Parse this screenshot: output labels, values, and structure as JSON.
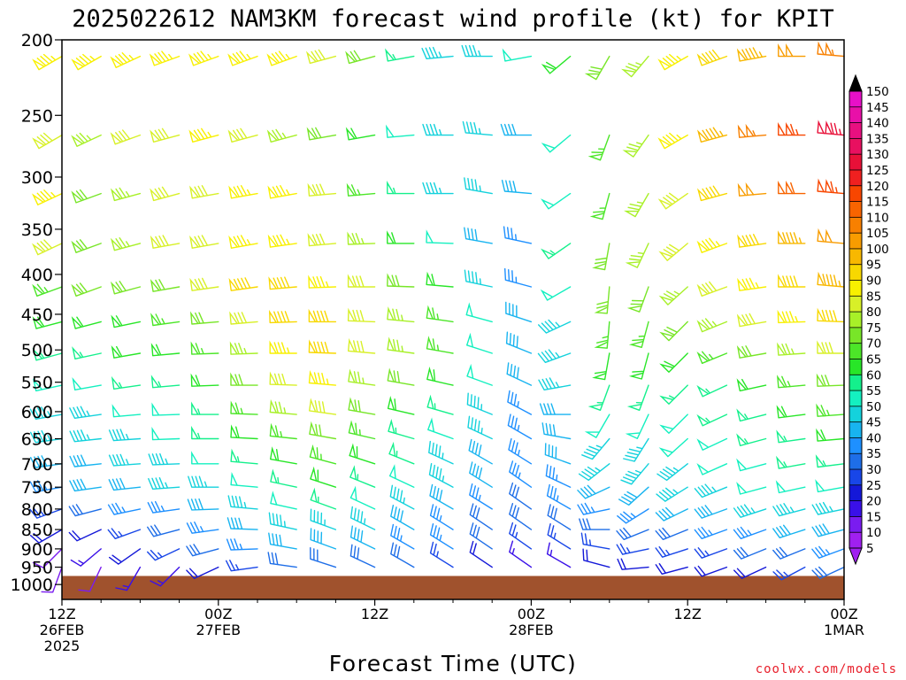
{
  "chart_data": {
    "type": "wind-barb-time-height",
    "title": "2025022612 NAM3KM forecast wind profile (kt) for KPIT",
    "xlabel": "Forecast Time (UTC)",
    "ylabel": "",
    "credit": "coolwx.com/models",
    "x_axis": {
      "range_hours": [
        0,
        60
      ],
      "tick_hours": [
        0,
        12,
        24,
        36,
        48,
        60
      ],
      "tick_labels": [
        [
          "12Z",
          "26FEB",
          "2025"
        ],
        [
          "00Z",
          "27FEB"
        ],
        [
          "12Z"
        ],
        [
          "00Z",
          "28FEB"
        ],
        [
          "12Z"
        ],
        [
          "00Z",
          "1MAR"
        ]
      ]
    },
    "y_axis": {
      "scale": "log",
      "range_hpa": [
        1000,
        200
      ],
      "ticks": [
        200,
        250,
        300,
        350,
        400,
        450,
        500,
        550,
        600,
        650,
        700,
        750,
        800,
        850,
        900,
        950,
        1000
      ]
    },
    "ground_pressure_hpa": 975,
    "ground_color": "#a0522d",
    "colorbar": {
      "levels": [
        5,
        10,
        15,
        20,
        25,
        30,
        35,
        40,
        45,
        50,
        55,
        60,
        65,
        70,
        75,
        80,
        85,
        90,
        95,
        100,
        105,
        110,
        115,
        120,
        125,
        130,
        135,
        140,
        145,
        150
      ],
      "colors": [
        "#a020f0",
        "#7a1cf0",
        "#3a10e8",
        "#1418d8",
        "#1846e8",
        "#1e6ee8",
        "#1e90ff",
        "#18b4f0",
        "#14d2dc",
        "#14f0c0",
        "#14f08c",
        "#28e628",
        "#4ce628",
        "#78e628",
        "#a8f028",
        "#d8f028",
        "#f8f000",
        "#f8d800",
        "#f8b800",
        "#f89c00",
        "#f88000",
        "#f86400",
        "#f84600",
        "#f02020",
        "#e81038",
        "#e81060",
        "#e81080",
        "#e810a8",
        "#e810c8",
        "#e810e8"
      ],
      "below_color": "#a020f0",
      "above_color": "#000000"
    },
    "barbs": {
      "times_hours": [
        0,
        3,
        6,
        9,
        12,
        15,
        18,
        21,
        24,
        27,
        30,
        33,
        36,
        39,
        42,
        45,
        48,
        51,
        54,
        57,
        60
      ],
      "levels_hpa": [
        210,
        265,
        315,
        365,
        415,
        460,
        505,
        555,
        605,
        650,
        700,
        750,
        800,
        850,
        900,
        950
      ],
      "wind_from_dir_deg": [
        [
          240,
          240,
          245,
          250,
          250,
          250,
          250,
          255,
          255,
          260,
          265,
          270,
          260,
          230,
          210,
          220,
          240,
          250,
          260,
          270,
          275
        ],
        [
          240,
          245,
          250,
          255,
          255,
          255,
          255,
          260,
          260,
          265,
          270,
          275,
          270,
          230,
          200,
          215,
          240,
          255,
          265,
          270,
          275
        ],
        [
          245,
          250,
          255,
          255,
          260,
          260,
          260,
          265,
          265,
          270,
          270,
          280,
          275,
          235,
          195,
          210,
          235,
          255,
          265,
          270,
          275
        ],
        [
          245,
          250,
          255,
          260,
          260,
          260,
          262,
          265,
          268,
          270,
          272,
          280,
          282,
          235,
          190,
          205,
          230,
          250,
          262,
          270,
          275
        ],
        [
          250,
          250,
          255,
          260,
          262,
          262,
          265,
          268,
          270,
          272,
          275,
          282,
          285,
          240,
          185,
          200,
          228,
          250,
          262,
          270,
          275
        ],
        [
          255,
          255,
          258,
          262,
          265,
          265,
          268,
          270,
          272,
          275,
          278,
          285,
          288,
          245,
          185,
          195,
          225,
          248,
          260,
          268,
          272
        ],
        [
          255,
          258,
          260,
          265,
          268,
          268,
          270,
          272,
          275,
          278,
          280,
          288,
          292,
          250,
          190,
          195,
          225,
          248,
          260,
          266,
          270
        ],
        [
          258,
          260,
          262,
          265,
          268,
          270,
          272,
          275,
          278,
          280,
          283,
          290,
          295,
          260,
          200,
          200,
          225,
          245,
          258,
          265,
          268
        ],
        [
          260,
          262,
          265,
          268,
          270,
          272,
          275,
          278,
          280,
          283,
          286,
          292,
          298,
          270,
          210,
          205,
          225,
          245,
          256,
          263,
          266
        ],
        [
          262,
          264,
          266,
          268,
          270,
          273,
          276,
          280,
          283,
          286,
          290,
          295,
          300,
          280,
          220,
          212,
          228,
          245,
          255,
          262,
          265
        ],
        [
          262,
          264,
          266,
          268,
          270,
          275,
          280,
          285,
          288,
          292,
          295,
          300,
          302,
          290,
          232,
          220,
          232,
          246,
          255,
          260,
          263
        ],
        [
          260,
          262,
          264,
          266,
          270,
          275,
          282,
          288,
          292,
          295,
          298,
          302,
          305,
          295,
          245,
          228,
          238,
          248,
          255,
          258,
          260
        ],
        [
          250,
          255,
          258,
          262,
          268,
          275,
          282,
          290,
          295,
          298,
          300,
          302,
          305,
          300,
          258,
          238,
          244,
          250,
          252,
          255,
          258
        ],
        [
          240,
          245,
          250,
          255,
          262,
          272,
          282,
          290,
          296,
          300,
          302,
          304,
          305,
          302,
          270,
          248,
          248,
          250,
          250,
          252,
          255
        ],
        [
          225,
          230,
          235,
          245,
          255,
          268,
          280,
          290,
          296,
          300,
          302,
          304,
          305,
          302,
          280,
          258,
          252,
          250,
          248,
          248,
          250
        ],
        [
          200,
          205,
          210,
          225,
          245,
          262,
          278,
          288,
          295,
          300,
          302,
          304,
          305,
          300,
          285,
          265,
          255,
          250,
          245,
          242,
          245
        ]
      ],
      "speed_kt": [
        [
          85,
          85,
          85,
          85,
          85,
          85,
          85,
          80,
          70,
          55,
          45,
          45,
          50,
          60,
          70,
          75,
          85,
          90,
          95,
          100,
          105
        ],
        [
          80,
          75,
          80,
          80,
          85,
          80,
          75,
          70,
          60,
          50,
          45,
          45,
          40,
          50,
          65,
          75,
          85,
          95,
          105,
          115,
          125
        ],
        [
          85,
          70,
          75,
          80,
          80,
          85,
          85,
          80,
          65,
          55,
          45,
          45,
          40,
          50,
          65,
          75,
          80,
          90,
          100,
          110,
          115
        ],
        [
          80,
          70,
          75,
          80,
          80,
          85,
          85,
          80,
          75,
          60,
          50,
          40,
          35,
          55,
          70,
          75,
          80,
          85,
          90,
          95,
          100
        ],
        [
          65,
          70,
          70,
          70,
          80,
          90,
          90,
          85,
          80,
          70,
          60,
          45,
          35,
          50,
          70,
          70,
          75,
          80,
          85,
          90,
          95
        ],
        [
          60,
          60,
          60,
          65,
          70,
          80,
          90,
          90,
          80,
          75,
          65,
          50,
          40,
          45,
          65,
          65,
          70,
          75,
          80,
          85,
          90
        ],
        [
          55,
          55,
          60,
          60,
          65,
          75,
          85,
          90,
          80,
          75,
          65,
          50,
          40,
          45,
          60,
          60,
          60,
          65,
          70,
          75,
          80
        ],
        [
          50,
          50,
          55,
          55,
          60,
          70,
          80,
          85,
          75,
          70,
          60,
          50,
          40,
          45,
          55,
          55,
          55,
          55,
          60,
          65,
          70
        ],
        [
          45,
          45,
          50,
          50,
          55,
          65,
          75,
          80,
          70,
          60,
          55,
          45,
          35,
          40,
          50,
          50,
          50,
          55,
          55,
          60,
          65
        ],
        [
          45,
          45,
          45,
          50,
          55,
          60,
          65,
          70,
          65,
          55,
          50,
          45,
          35,
          40,
          45,
          45,
          50,
          50,
          55,
          55,
          60
        ],
        [
          40,
          40,
          45,
          45,
          50,
          55,
          60,
          65,
          60,
          55,
          45,
          40,
          35,
          40,
          45,
          45,
          45,
          50,
          50,
          55,
          55
        ],
        [
          35,
          40,
          40,
          45,
          45,
          50,
          55,
          60,
          55,
          50,
          45,
          40,
          35,
          35,
          40,
          40,
          45,
          45,
          50,
          50,
          50
        ],
        [
          25,
          30,
          35,
          35,
          40,
          45,
          50,
          55,
          50,
          45,
          40,
          35,
          30,
          35,
          35,
          35,
          40,
          40,
          45,
          45,
          45
        ],
        [
          20,
          20,
          25,
          30,
          35,
          40,
          45,
          45,
          45,
          40,
          35,
          30,
          30,
          30,
          30,
          30,
          30,
          35,
          35,
          40,
          40
        ],
        [
          10,
          15,
          20,
          25,
          30,
          35,
          40,
          40,
          40,
          35,
          35,
          30,
          25,
          25,
          25,
          25,
          25,
          25,
          30,
          30,
          35
        ],
        [
          10,
          10,
          15,
          15,
          20,
          25,
          30,
          30,
          30,
          30,
          25,
          20,
          15,
          15,
          20,
          20,
          20,
          20,
          20,
          25,
          30
        ]
      ]
    }
  }
}
